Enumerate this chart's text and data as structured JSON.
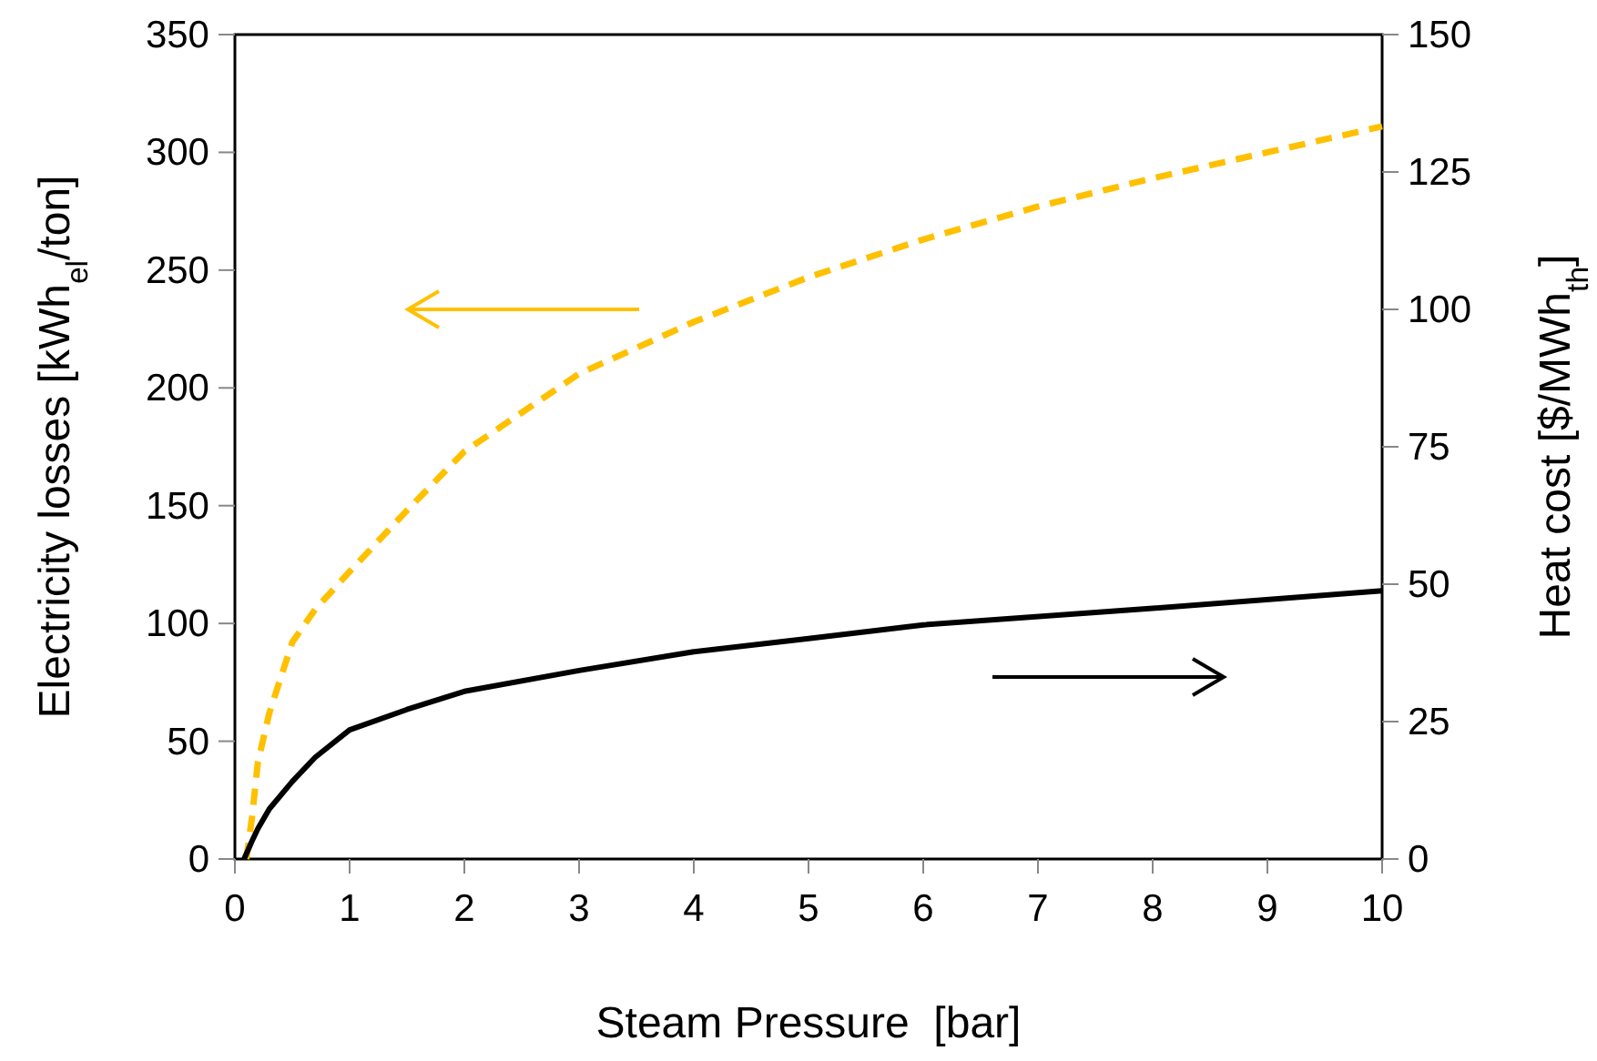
{
  "chart_data": {
    "type": "line",
    "xlabel": "Steam Pressure  [bar]",
    "ylabel": "Electricity losses [kWh$_{el}$/ton]",
    "y2label": "Heat cost [$/MWh$_{th}$]",
    "xlim": [
      0,
      10
    ],
    "xticks": [
      0,
      1,
      2,
      3,
      4,
      5,
      6,
      7,
      8,
      9,
      10
    ],
    "ylim": [
      0,
      350
    ],
    "yticks": [
      0,
      50,
      100,
      150,
      200,
      250,
      300,
      350
    ],
    "y2lim": [
      0,
      150
    ],
    "y2ticks": [
      0,
      25,
      50,
      75,
      100,
      125,
      150
    ],
    "grid": false,
    "series": [
      {
        "color": "#ffc000",
        "line_style": "dashed",
        "x": [
          0.1,
          0.15,
          0.2,
          0.3,
          0.5,
          0.7,
          1,
          1.5,
          2,
          3,
          4,
          5,
          6,
          7,
          8,
          9,
          10
        ],
        "values": [
          0,
          18,
          41,
          62,
          92,
          106,
          122,
          148,
          173,
          206,
          228,
          247,
          263,
          277,
          289,
          300,
          311
        ]
      },
      {
        "color": "#000000",
        "line_style": "solid",
        "axis": "y2",
        "x": [
          0.08,
          0.15,
          0.2,
          0.3,
          0.5,
          0.7,
          1,
          1.5,
          2,
          3,
          4,
          5,
          6,
          8,
          10
        ],
        "values": [
          0,
          3.3,
          5.5,
          9.1,
          14.1,
          18.5,
          23.5,
          27.2,
          30.5,
          34.3,
          37.7,
          40.1,
          42.6,
          45.6,
          48.8
        ]
      }
    ]
  }
}
